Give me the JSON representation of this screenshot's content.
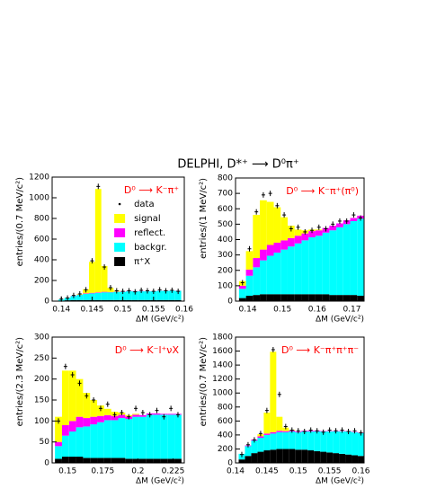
{
  "title": "DELPHI, D*⁺ ⟶ D⁰π⁺",
  "chart_data": [
    {
      "type": "histogram",
      "annotation": "D⁰ ⟶ K⁻π⁺",
      "ylabel": "entries/(0.7 MeV/c²)",
      "xlabel": "ΔM (GeV/c²)",
      "xlim": [
        0.1385,
        0.16
      ],
      "ylim": [
        0,
        1200
      ],
      "xticks": [
        0.14,
        0.145,
        0.15,
        0.155,
        0.16
      ],
      "yticks": [
        0,
        200,
        400,
        600,
        800,
        1000,
        1200
      ],
      "legend": "upper right",
      "bins": [
        0.1395,
        0.1405,
        0.1415,
        0.1425,
        0.1435,
        0.1445,
        0.1455,
        0.1465,
        0.1475,
        0.1485,
        0.1495,
        0.1505,
        0.1515,
        0.1525,
        0.1535,
        0.1545,
        0.1555,
        0.1565,
        0.1575,
        0.1585,
        0.1595
      ],
      "series": [
        {
          "name": "π⁺X",
          "color": "#000000",
          "values": [
            5,
            8,
            10,
            10,
            10,
            10,
            10,
            10,
            10,
            10,
            10,
            10,
            10,
            10,
            10,
            10,
            10,
            10,
            10,
            10
          ]
        },
        {
          "name": "backgr.",
          "color": "#00ffff",
          "values": [
            10,
            25,
            40,
            50,
            60,
            65,
            70,
            75,
            75,
            80,
            80,
            85,
            85,
            85,
            85,
            85,
            90,
            90,
            90,
            90
          ]
        },
        {
          "name": "reflect.",
          "color": "#ff00ff",
          "values": [
            0,
            0,
            2,
            3,
            5,
            5,
            5,
            5,
            3,
            3,
            2,
            2,
            2,
            2,
            1,
            1,
            1,
            1,
            1,
            1
          ]
        },
        {
          "name": "signal",
          "color": "#ffff00",
          "values": [
            0,
            0,
            0,
            5,
            40,
            300,
            1000,
            250,
            40,
            10,
            0,
            0,
            0,
            0,
            0,
            0,
            0,
            0,
            0,
            0
          ]
        }
      ],
      "points": {
        "name": "data",
        "color": "#000000",
        "values": [
          20,
          30,
          55,
          70,
          110,
          390,
          1110,
          330,
          130,
          100,
          95,
          100,
          90,
          105,
          100,
          95,
          110,
          100,
          105,
          95
        ]
      }
    },
    {
      "type": "histogram",
      "annotation": "D⁰ ⟶ K⁻π⁺(π⁰)",
      "ylabel": "entries/(1 MeV/c²)",
      "xlabel": "ΔM (GeV/c²)",
      "xlim": [
        0.1365,
        0.1735
      ],
      "ylim": [
        0,
        800
      ],
      "xticks": [
        0.14,
        0.15,
        0.16,
        0.17
      ],
      "yticks": [
        0,
        100,
        200,
        300,
        400,
        500,
        600,
        700,
        800
      ],
      "bins": [
        0.1375,
        0.1395,
        0.1415,
        0.1435,
        0.1455,
        0.1475,
        0.1495,
        0.1515,
        0.1535,
        0.1555,
        0.1575,
        0.1595,
        0.1615,
        0.1635,
        0.1655,
        0.1675,
        0.1695,
        0.1715,
        0.1735
      ],
      "series": [
        {
          "color": "#000000",
          "values": [
            20,
            35,
            40,
            45,
            45,
            45,
            45,
            45,
            45,
            45,
            45,
            45,
            45,
            40,
            40,
            40,
            40,
            35
          ]
        },
        {
          "color": "#00ffff",
          "values": [
            60,
            130,
            180,
            220,
            250,
            270,
            290,
            310,
            330,
            350,
            370,
            380,
            400,
            420,
            440,
            460,
            480,
            500
          ]
        },
        {
          "color": "#ff00ff",
          "values": [
            20,
            40,
            60,
            70,
            70,
            65,
            60,
            55,
            50,
            45,
            40,
            35,
            30,
            30,
            25,
            25,
            20,
            20
          ]
        },
        {
          "color": "#ffff00",
          "values": [
            30,
            120,
            280,
            320,
            280,
            230,
            150,
            80,
            40,
            20,
            10,
            5,
            0,
            0,
            0,
            0,
            0,
            0
          ]
        }
      ],
      "points": {
        "color": "#000000",
        "values": [
          120,
          340,
          580,
          690,
          700,
          620,
          560,
          470,
          480,
          450,
          460,
          480,
          470,
          500,
          520,
          520,
          560,
          540
        ]
      }
    },
    {
      "type": "histogram",
      "annotation": "D⁰ ⟶ K⁻l⁺νX",
      "ylabel": "entries/(2.3 MeV/c²)",
      "xlabel": "ΔM (GeV/c²)",
      "xlim": [
        0.139,
        0.233
      ],
      "ylim": [
        0,
        300
      ],
      "xticks": [
        0.15,
        0.175,
        0.2,
        0.225
      ],
      "yticks": [
        0,
        50,
        100,
        150,
        200,
        250,
        300
      ],
      "bins": [
        0.141,
        0.146,
        0.151,
        0.156,
        0.161,
        0.166,
        0.171,
        0.176,
        0.181,
        0.186,
        0.191,
        0.196,
        0.201,
        0.206,
        0.211,
        0.216,
        0.221,
        0.226,
        0.231
      ],
      "series": [
        {
          "color": "#000000",
          "values": [
            10,
            15,
            15,
            15,
            12,
            12,
            12,
            12,
            12,
            12,
            10,
            10,
            10,
            10,
            10,
            10,
            10,
            10
          ]
        },
        {
          "color": "#00ffff",
          "values": [
            30,
            50,
            60,
            70,
            75,
            80,
            85,
            90,
            90,
            95,
            95,
            100,
            100,
            105,
            105,
            105,
            105,
            105
          ]
        },
        {
          "color": "#ff00ff",
          "values": [
            10,
            25,
            25,
            25,
            20,
            18,
            15,
            12,
            10,
            8,
            6,
            5,
            4,
            3,
            3,
            2,
            2,
            2
          ]
        },
        {
          "color": "#ffff00",
          "values": [
            60,
            130,
            120,
            90,
            60,
            40,
            25,
            15,
            10,
            5,
            3,
            2,
            0,
            0,
            0,
            0,
            0,
            0
          ]
        }
      ],
      "points": {
        "color": "#000000",
        "values": [
          100,
          230,
          210,
          190,
          160,
          150,
          130,
          140,
          115,
          120,
          110,
          130,
          120,
          115,
          125,
          110,
          130,
          115
        ]
      }
    },
    {
      "type": "histogram",
      "annotation": "D⁰ ⟶ K⁻π⁺π⁺π⁻",
      "ylabel": "entries/(0.7 MeV/c²)",
      "xlabel": "ΔM (GeV/c²)",
      "xlim": [
        0.14,
        0.1605
      ],
      "ylim": [
        0,
        1800
      ],
      "xticks": [
        0.14,
        0.145,
        0.15,
        0.155,
        0.16
      ],
      "yticks": [
        0,
        200,
        400,
        600,
        800,
        1000,
        1200,
        1400,
        1600,
        1800
      ],
      "bins": [
        0.1405,
        0.1415,
        0.1425,
        0.1435,
        0.1445,
        0.1455,
        0.1465,
        0.1475,
        0.1485,
        0.1495,
        0.1505,
        0.1515,
        0.1525,
        0.1535,
        0.1545,
        0.1555,
        0.1565,
        0.1575,
        0.1585,
        0.1595,
        0.1605
      ],
      "series": [
        {
          "color": "#000000",
          "values": [
            50,
            100,
            140,
            160,
            180,
            190,
            200,
            200,
            200,
            190,
            190,
            180,
            170,
            160,
            150,
            140,
            130,
            120,
            110,
            100
          ]
        },
        {
          "color": "#00ffff",
          "values": [
            80,
            140,
            180,
            200,
            220,
            230,
            240,
            240,
            250,
            250,
            260,
            270,
            280,
            290,
            300,
            310,
            320,
            330,
            330,
            330
          ]
        },
        {
          "color": "#ff00ff",
          "values": [
            0,
            10,
            15,
            20,
            20,
            20,
            20,
            15,
            15,
            10,
            10,
            10,
            10,
            5,
            5,
            5,
            5,
            5,
            5,
            5
          ]
        },
        {
          "color": "#ffff00",
          "values": [
            0,
            0,
            0,
            30,
            300,
            1150,
            200,
            50,
            10,
            0,
            0,
            0,
            0,
            0,
            0,
            0,
            0,
            0,
            0,
            0
          ]
        }
      ],
      "points": {
        "color": "#000000",
        "values": [
          120,
          260,
          330,
          420,
          750,
          1620,
          980,
          520,
          470,
          460,
          450,
          470,
          460,
          440,
          470,
          460,
          470,
          450,
          460,
          430
        ]
      }
    }
  ]
}
